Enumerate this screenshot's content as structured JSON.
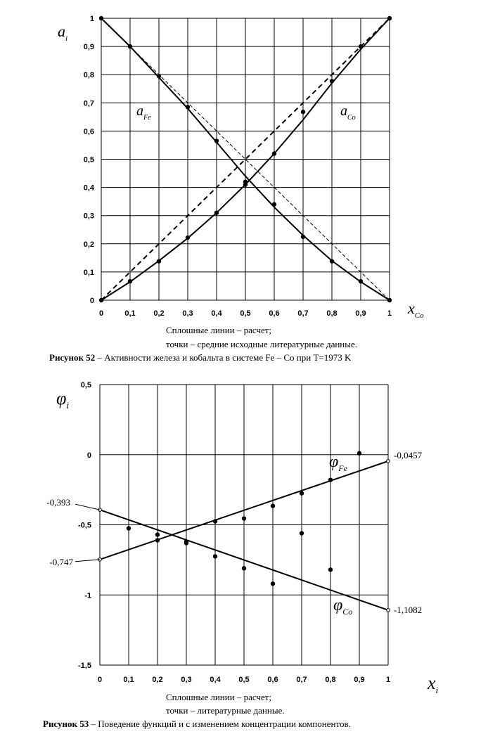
{
  "chart_data": [
    {
      "type": "line",
      "figure": "Рисунок 52",
      "caption_bold": "Рисунок 52",
      "caption_text": " – Активности железа и кобальта в системе Fe – Co при T=1973 K",
      "note_line1": "Сплошные линии – расчет;",
      "note_line2": "точки – средние исходные литературные данные.",
      "ylabel_main": "a",
      "ylabel_sub": "i",
      "xlabel_main": "x",
      "xlabel_sub": "Co",
      "xlim": [
        0,
        1
      ],
      "ylim": [
        0,
        1
      ],
      "x_ticks": [
        "0",
        "0,1",
        "0,2",
        "0,3",
        "0,4",
        "0,5",
        "0,6",
        "0,7",
        "0,8",
        "0,9",
        "1"
      ],
      "y_ticks": [
        "0",
        "0,1",
        "0,2",
        "0,3",
        "0,4",
        "0,5",
        "0,6",
        "0,7",
        "0,8",
        "0,9",
        "1"
      ],
      "grid": true,
      "series": [
        {
          "name": "a_Fe",
          "label_main": "a",
          "label_sub": "Fe",
          "kind": "curve",
          "x": [
            0,
            0.1,
            0.2,
            0.3,
            0.4,
            0.5,
            0.6,
            0.7,
            0.8,
            0.9,
            1
          ],
          "y": [
            1,
            0.9,
            0.79,
            0.68,
            0.56,
            0.44,
            0.33,
            0.23,
            0.14,
            0.065,
            0
          ]
        },
        {
          "name": "a_Co",
          "label_main": "a",
          "label_sub": "Co",
          "kind": "curve",
          "x": [
            0,
            0.1,
            0.2,
            0.3,
            0.4,
            0.5,
            0.6,
            0.7,
            0.8,
            0.9,
            1
          ],
          "y": [
            0,
            0.065,
            0.14,
            0.22,
            0.31,
            0.41,
            0.52,
            0.64,
            0.77,
            0.89,
            1
          ]
        },
        {
          "name": "Raoult Co",
          "kind": "ideal-dashed",
          "x": [
            0,
            1
          ],
          "y": [
            0,
            1
          ]
        },
        {
          "name": "Raoult Fe",
          "kind": "ideal-thin-dashed",
          "x": [
            0,
            1
          ],
          "y": [
            1,
            0
          ]
        },
        {
          "name": "a_Fe data",
          "kind": "points",
          "x": [
            0,
            0.1,
            0.2,
            0.3,
            0.4,
            0.5,
            0.6,
            0.7,
            0.8,
            0.9,
            1
          ],
          "y": [
            1,
            0.9,
            0.795,
            0.685,
            0.565,
            0.41,
            0.34,
            0.225,
            0.138,
            0.067,
            0
          ]
        },
        {
          "name": "a_Co data",
          "kind": "points",
          "x": [
            0,
            0.1,
            0.2,
            0.3,
            0.4,
            0.5,
            0.6,
            0.7,
            0.8,
            0.9,
            1
          ],
          "y": [
            0,
            0.067,
            0.138,
            0.222,
            0.31,
            0.42,
            0.52,
            0.668,
            0.777,
            0.9,
            1
          ]
        }
      ]
    },
    {
      "type": "line",
      "figure": "Рисунок 53",
      "caption_bold": "Рисунок 53",
      "caption_text": " – Поведение функций  и  с изменением концентрации компонентов.",
      "note_line1": "Сплошные линии – расчет;",
      "note_line2": "точки – литературные данные.",
      "ylabel_main": "φ",
      "ylabel_sub": "i",
      "xlabel_main": "x",
      "xlabel_sub": "i",
      "xlim": [
        0,
        1
      ],
      "ylim": [
        -1.5,
        0.5
      ],
      "x_ticks": [
        "0",
        "0,1",
        "0,2",
        "0,3",
        "0,4",
        "0,5",
        "0,6",
        "0,7",
        "0,8",
        "0,9",
        "1"
      ],
      "y_ticks": [
        "0,5",
        "0",
        "-0,5",
        "-1",
        "-1,5"
      ],
      "y_tick_values": [
        0.5,
        0,
        -0.5,
        -1,
        -1.5
      ],
      "grid": "vertical",
      "annotations": {
        "fe_start": "-0,747",
        "fe_end": "-0,0457",
        "co_start": "-0,393",
        "co_end": "-1,1082"
      },
      "series": [
        {
          "name": "φ_Fe",
          "label_main": "φ",
          "label_sub": "Fe",
          "kind": "line",
          "x": [
            0,
            1
          ],
          "y": [
            -0.747,
            -0.0457
          ]
        },
        {
          "name": "φ_Co",
          "label_main": "φ",
          "label_sub": "Co",
          "kind": "line",
          "x": [
            0,
            1
          ],
          "y": [
            -0.393,
            -1.1082
          ]
        },
        {
          "name": "φ_Fe data",
          "kind": "points",
          "x": [
            0.2,
            0.3,
            0.4,
            0.5,
            0.6,
            0.7,
            0.8,
            0.9
          ],
          "y": [
            -0.61,
            -0.62,
            -0.475,
            -0.455,
            -0.365,
            -0.275,
            -0.18,
            0.01
          ]
        },
        {
          "name": "φ_Co data",
          "kind": "points",
          "x": [
            0.1,
            0.2,
            0.3,
            0.4,
            0.5,
            0.6,
            0.7,
            0.8
          ],
          "y": [
            -0.525,
            -0.57,
            -0.63,
            -0.725,
            -0.81,
            -0.92,
            -0.56,
            -0.82
          ]
        }
      ]
    }
  ]
}
